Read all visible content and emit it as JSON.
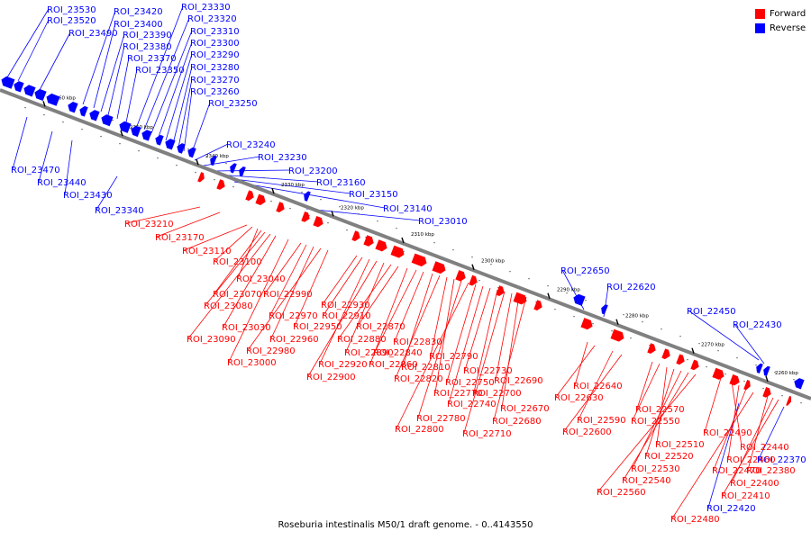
{
  "legend": {
    "forward_label": "Forward",
    "reverse_label": "Reverse",
    "forward_color": "#ff0000",
    "reverse_color": "#0000ff"
  },
  "caption": "Roseburia intestinalis M50/1 draft genome. - 0..4143550",
  "colors": {
    "backbone": "#808080",
    "tick": "#000000",
    "label_text": "#000000"
  },
  "ticks": [
    "2360 kbp",
    "2350 kbp",
    "2340 kbp",
    "2330 kbp",
    "2320 kbp",
    "2310 kbp",
    "2300 kbp",
    "2290 kbp",
    "2280 kbp",
    "2270 kbp",
    "2260 kbp"
  ],
  "reverse_labels": [
    "ROI_23530",
    "ROI_23520",
    "ROI_23490",
    "ROI_23420",
    "ROI_23400",
    "ROI_23390",
    "ROI_23380",
    "ROI_23370",
    "ROI_23350",
    "ROI_23330",
    "ROI_23320",
    "ROI_23310",
    "ROI_23300",
    "ROI_23290",
    "ROI_23280",
    "ROI_23270",
    "ROI_23260",
    "ROI_23250",
    "ROI_23240",
    "ROI_23230",
    "ROI_23200",
    "ROI_23160",
    "ROI_23150",
    "ROI_23140",
    "ROI_23010",
    "ROI_23470",
    "ROI_23440",
    "ROI_23430",
    "ROI_23340",
    "ROI_22650",
    "ROI_22620",
    "ROI_22450",
    "ROI_22430",
    "ROI_22420",
    "ROI_22370"
  ],
  "forward_labels": [
    "ROI_23210",
    "ROI_23170",
    "ROI_23110",
    "ROI_23100",
    "ROI_23040",
    "ROI_23070",
    "ROI_23080",
    "ROI_23090",
    "ROI_23030",
    "ROI_23000",
    "ROI_22990",
    "ROI_22970",
    "ROI_22960",
    "ROI_22980",
    "ROI_22950",
    "ROI_22930",
    "ROI_22910",
    "ROI_22920",
    "ROI_22900",
    "ROI_22890",
    "ROI_22880",
    "ROI_22870",
    "ROI_22860",
    "ROI_22840",
    "ROI_22830",
    "ROI_22810",
    "ROI_22820",
    "ROI_22790",
    "ROI_22770",
    "ROI_22780",
    "ROI_22800",
    "ROI_22750",
    "ROI_22740",
    "ROI_22730",
    "ROI_22700",
    "ROI_22710",
    "ROI_22690",
    "ROI_22670",
    "ROI_22680",
    "ROI_22640",
    "ROI_22630",
    "ROI_22590",
    "ROI_22600",
    "ROI_22570",
    "ROI_22550",
    "ROI_22510",
    "ROI_22520",
    "ROI_22530",
    "ROI_22540",
    "ROI_22560",
    "ROI_22490",
    "ROI_22440",
    "ROI_22460",
    "ROI_22470",
    "ROI_22480",
    "ROI_22380",
    "ROI_22400",
    "ROI_22410"
  ]
}
